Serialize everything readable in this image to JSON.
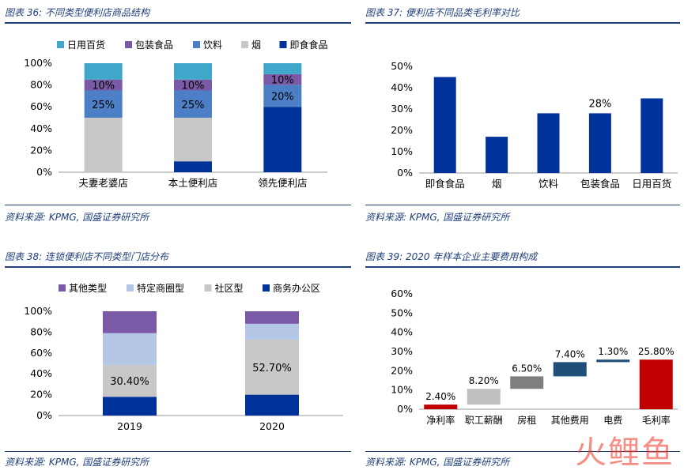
{
  "panels": [
    {
      "title": "图表 36:  不同类型便利店商品结构",
      "source": "资料来源: KPMG, 国盛证券研究所"
    },
    {
      "title": "图表 37:  便利店不同品类毛利率对比",
      "source": "资料来源: KPMG, 国盛证券研究所"
    },
    {
      "title": "图表 38:  连锁便利店不同类型门店分布",
      "source": "资料来源: KPMG, 国盛证券研究所"
    },
    {
      "title": "图表 39:  2020 年样本企业主要费用构成",
      "source": "资料来源: KPMG, 国盛证券研究所"
    }
  ],
  "watermark": "火鲤鱼",
  "chart_data": [
    {
      "type": "bar",
      "stacked": true,
      "categories": [
        "夫妻老婆店",
        "本土便利店",
        "领先便利店"
      ],
      "ylim": [
        0,
        100
      ],
      "yticks": [
        "0%",
        "20%",
        "40%",
        "60%",
        "80%",
        "100%"
      ],
      "legend_position": "top",
      "series": [
        {
          "name": "即食食品",
          "color": "#003399",
          "values": [
            0,
            10,
            60
          ],
          "labels": [
            "",
            "",
            ""
          ]
        },
        {
          "name": "烟",
          "color": "#c8c8c8",
          "values": [
            50,
            40,
            0
          ],
          "labels": [
            "",
            "",
            ""
          ]
        },
        {
          "name": "饮料",
          "color": "#4d7fc7",
          "values": [
            25,
            25,
            20
          ],
          "labels": [
            "25%",
            "25%",
            "20%"
          ]
        },
        {
          "name": "包装食品",
          "color": "#7a5aa6",
          "values": [
            10,
            10,
            10
          ],
          "labels": [
            "10%",
            "10%",
            "10%"
          ]
        },
        {
          "name": "日用百货",
          "color": "#3fa7c9",
          "values": [
            15,
            15,
            10
          ],
          "labels": [
            "",
            "",
            ""
          ]
        }
      ],
      "legend_order": [
        "日用百货",
        "包装食品",
        "饮料",
        "烟",
        "即食食品"
      ]
    },
    {
      "type": "bar",
      "categories": [
        "即食食品",
        "烟",
        "饮料",
        "包装食品",
        "日用百货"
      ],
      "values": [
        45,
        17,
        28,
        28,
        35
      ],
      "labels": [
        "",
        "",
        "",
        "28%",
        ""
      ],
      "color": "#003399",
      "ylim": [
        0,
        50
      ],
      "yticks": [
        "0%",
        "10%",
        "20%",
        "30%",
        "40%",
        "50%"
      ]
    },
    {
      "type": "bar",
      "stacked": true,
      "categories": [
        "2019",
        "2020"
      ],
      "ylim": [
        0,
        100
      ],
      "yticks": [
        "0%",
        "20%",
        "40%",
        "60%",
        "80%",
        "100%"
      ],
      "legend_position": "top",
      "series": [
        {
          "name": "商务办公区",
          "color": "#003399",
          "values": [
            18,
            20
          ],
          "labels": [
            "",
            ""
          ]
        },
        {
          "name": "社区型",
          "color": "#c8c8c8",
          "values": [
            30.4,
            52.7
          ],
          "labels": [
            "30.40%",
            "52.70%"
          ]
        },
        {
          "name": "特定商圈型",
          "color": "#b4c7e7",
          "values": [
            30.6,
            15.3
          ],
          "labels": [
            "",
            ""
          ]
        },
        {
          "name": "其他类型",
          "color": "#7a5aa6",
          "values": [
            21,
            12
          ],
          "labels": [
            "",
            ""
          ]
        }
      ],
      "legend_order": [
        "其他类型",
        "特定商圈型",
        "社区型",
        "商务办公区"
      ]
    },
    {
      "type": "bar",
      "subtype": "waterfall",
      "categories": [
        "净利率",
        "职工薪酬",
        "房租",
        "其他费用",
        "电费",
        "毛利率"
      ],
      "values": [
        2.4,
        8.2,
        6.5,
        7.4,
        1.3,
        25.8
      ],
      "labels": [
        "2.40%",
        "8.20%",
        "6.50%",
        "7.40%",
        "1.30%",
        "25.80%"
      ],
      "colors": [
        "#c00000",
        "#bfbfbf",
        "#7f7f7f",
        "#1f4e79",
        "#1f4e79",
        "#c00000"
      ],
      "ylim": [
        0,
        60
      ],
      "yticks": [
        "0%",
        "10%",
        "20%",
        "30%",
        "40%",
        "50%",
        "60%"
      ]
    }
  ]
}
